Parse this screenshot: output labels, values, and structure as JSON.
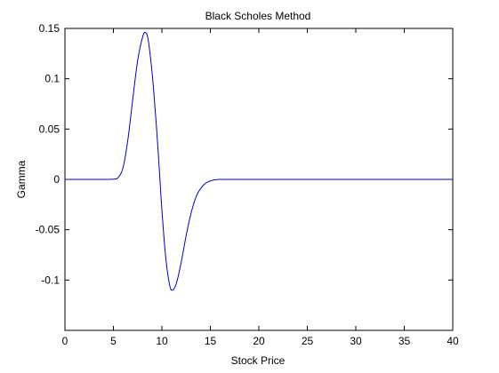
{
  "chart_data": {
    "type": "line",
    "title": "Black Scholes Method",
    "xlabel": "Stock Price",
    "ylabel": "Gamma",
    "xlim": [
      0,
      40
    ],
    "ylim": [
      -0.15,
      0.15
    ],
    "grid": false,
    "x_ticks": [
      0,
      5,
      10,
      15,
      20,
      25,
      30,
      35,
      40
    ],
    "x_tick_labels": [
      "0",
      "5",
      "10",
      "15",
      "20",
      "25",
      "30",
      "35",
      "40"
    ],
    "y_ticks": [
      0.15,
      0.1,
      0.05,
      0,
      -0.05,
      -0.1
    ],
    "y_tick_labels": [
      "0.15",
      "0.1",
      "0.05",
      "0",
      "-0.05",
      "-0.1"
    ],
    "series": [
      {
        "color": "#0000cc",
        "x": [
          0,
          2,
          4,
          5,
          5.5,
          6,
          6.5,
          7,
          7.5,
          8,
          8.3,
          8.6,
          9,
          9.3,
          9.6,
          10,
          10.4,
          10.8,
          11.1,
          11.5,
          12,
          12.5,
          13,
          13.5,
          14,
          14.5,
          15,
          15.5,
          16,
          17,
          20,
          25,
          30,
          35,
          40
        ],
        "y": [
          0,
          0,
          0,
          0.0002,
          0.002,
          0.012,
          0.04,
          0.08,
          0.118,
          0.141,
          0.146,
          0.138,
          0.105,
          0.07,
          0.03,
          -0.03,
          -0.078,
          -0.105,
          -0.11,
          -0.103,
          -0.082,
          -0.056,
          -0.034,
          -0.018,
          -0.009,
          -0.004,
          -0.0015,
          -0.0004,
          0,
          0,
          0,
          0,
          0,
          0,
          0
        ]
      }
    ]
  }
}
